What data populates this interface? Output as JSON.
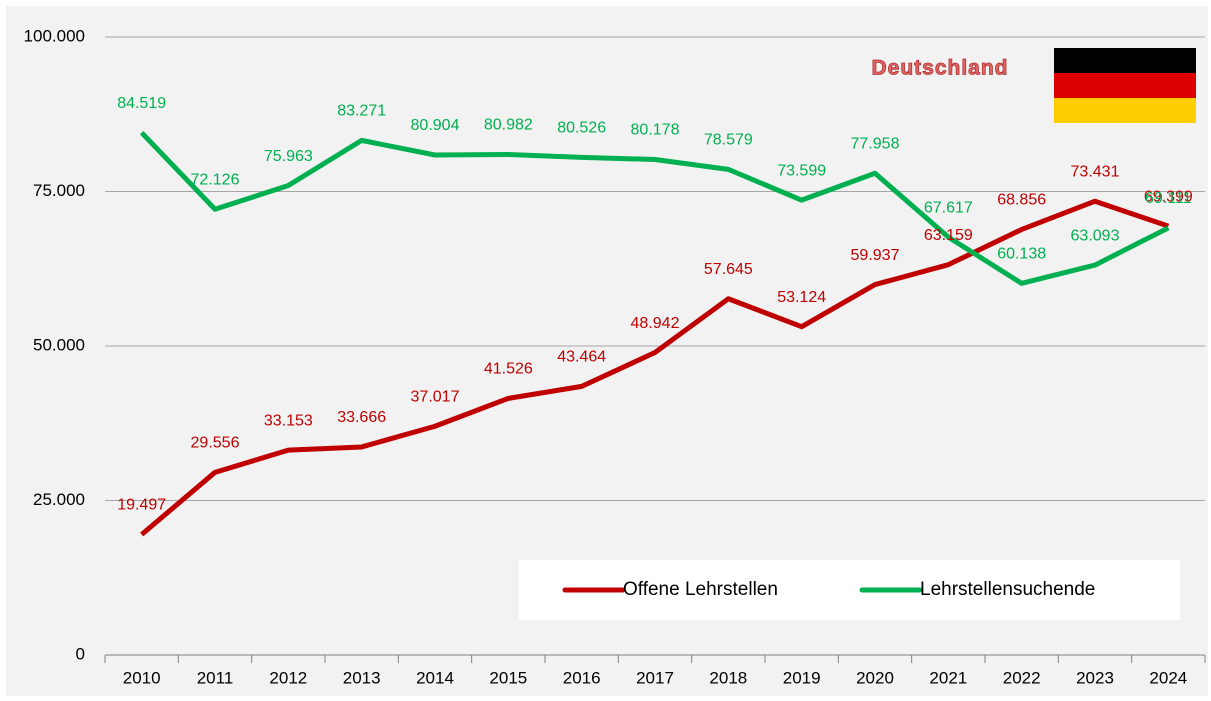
{
  "chart_data": {
    "type": "line",
    "annotation": "Deutschland",
    "categories": [
      "2010",
      "2011",
      "2012",
      "2013",
      "2014",
      "2015",
      "2016",
      "2017",
      "2018",
      "2019",
      "2020",
      "2021",
      "2022",
      "2023",
      "2024"
    ],
    "series": [
      {
        "name": "Offene Lehrstellen",
        "color": "#c00000",
        "values": [
          19497,
          29556,
          33153,
          33666,
          37017,
          41526,
          43464,
          48942,
          57645,
          53124,
          59937,
          63159,
          68856,
          73431,
          69399
        ],
        "value_labels": [
          "19.497",
          "29.556",
          "33.153",
          "33.666",
          "37.017",
          "41.526",
          "43.464",
          "48.942",
          "57.645",
          "53.124",
          "59.937",
          "63.159",
          "68.856",
          "73.431",
          "69.399"
        ]
      },
      {
        "name": "Lehrstellensuchende",
        "color": "#00b050",
        "values": [
          84519,
          72126,
          75963,
          83271,
          80904,
          80982,
          80526,
          80178,
          78579,
          73599,
          77958,
          67617,
          60138,
          63093,
          69111
        ],
        "value_labels": [
          "84.519",
          "72.126",
          "75.963",
          "83.271",
          "80.904",
          "80.982",
          "80.526",
          "80.178",
          "78.579",
          "73.599",
          "77.958",
          "67.617",
          "60.138",
          "63.093",
          "69.111"
        ]
      }
    ],
    "ylim": [
      0,
      100000
    ],
    "yticks": [
      0,
      {
        "value": 25000,
        "label": "25.000"
      },
      {
        "value": 50000,
        "label": "50.000"
      },
      {
        "value": 75000,
        "label": "75.000"
      },
      {
        "value": 100000,
        "label": "100.000"
      }
    ],
    "grid": true
  }
}
